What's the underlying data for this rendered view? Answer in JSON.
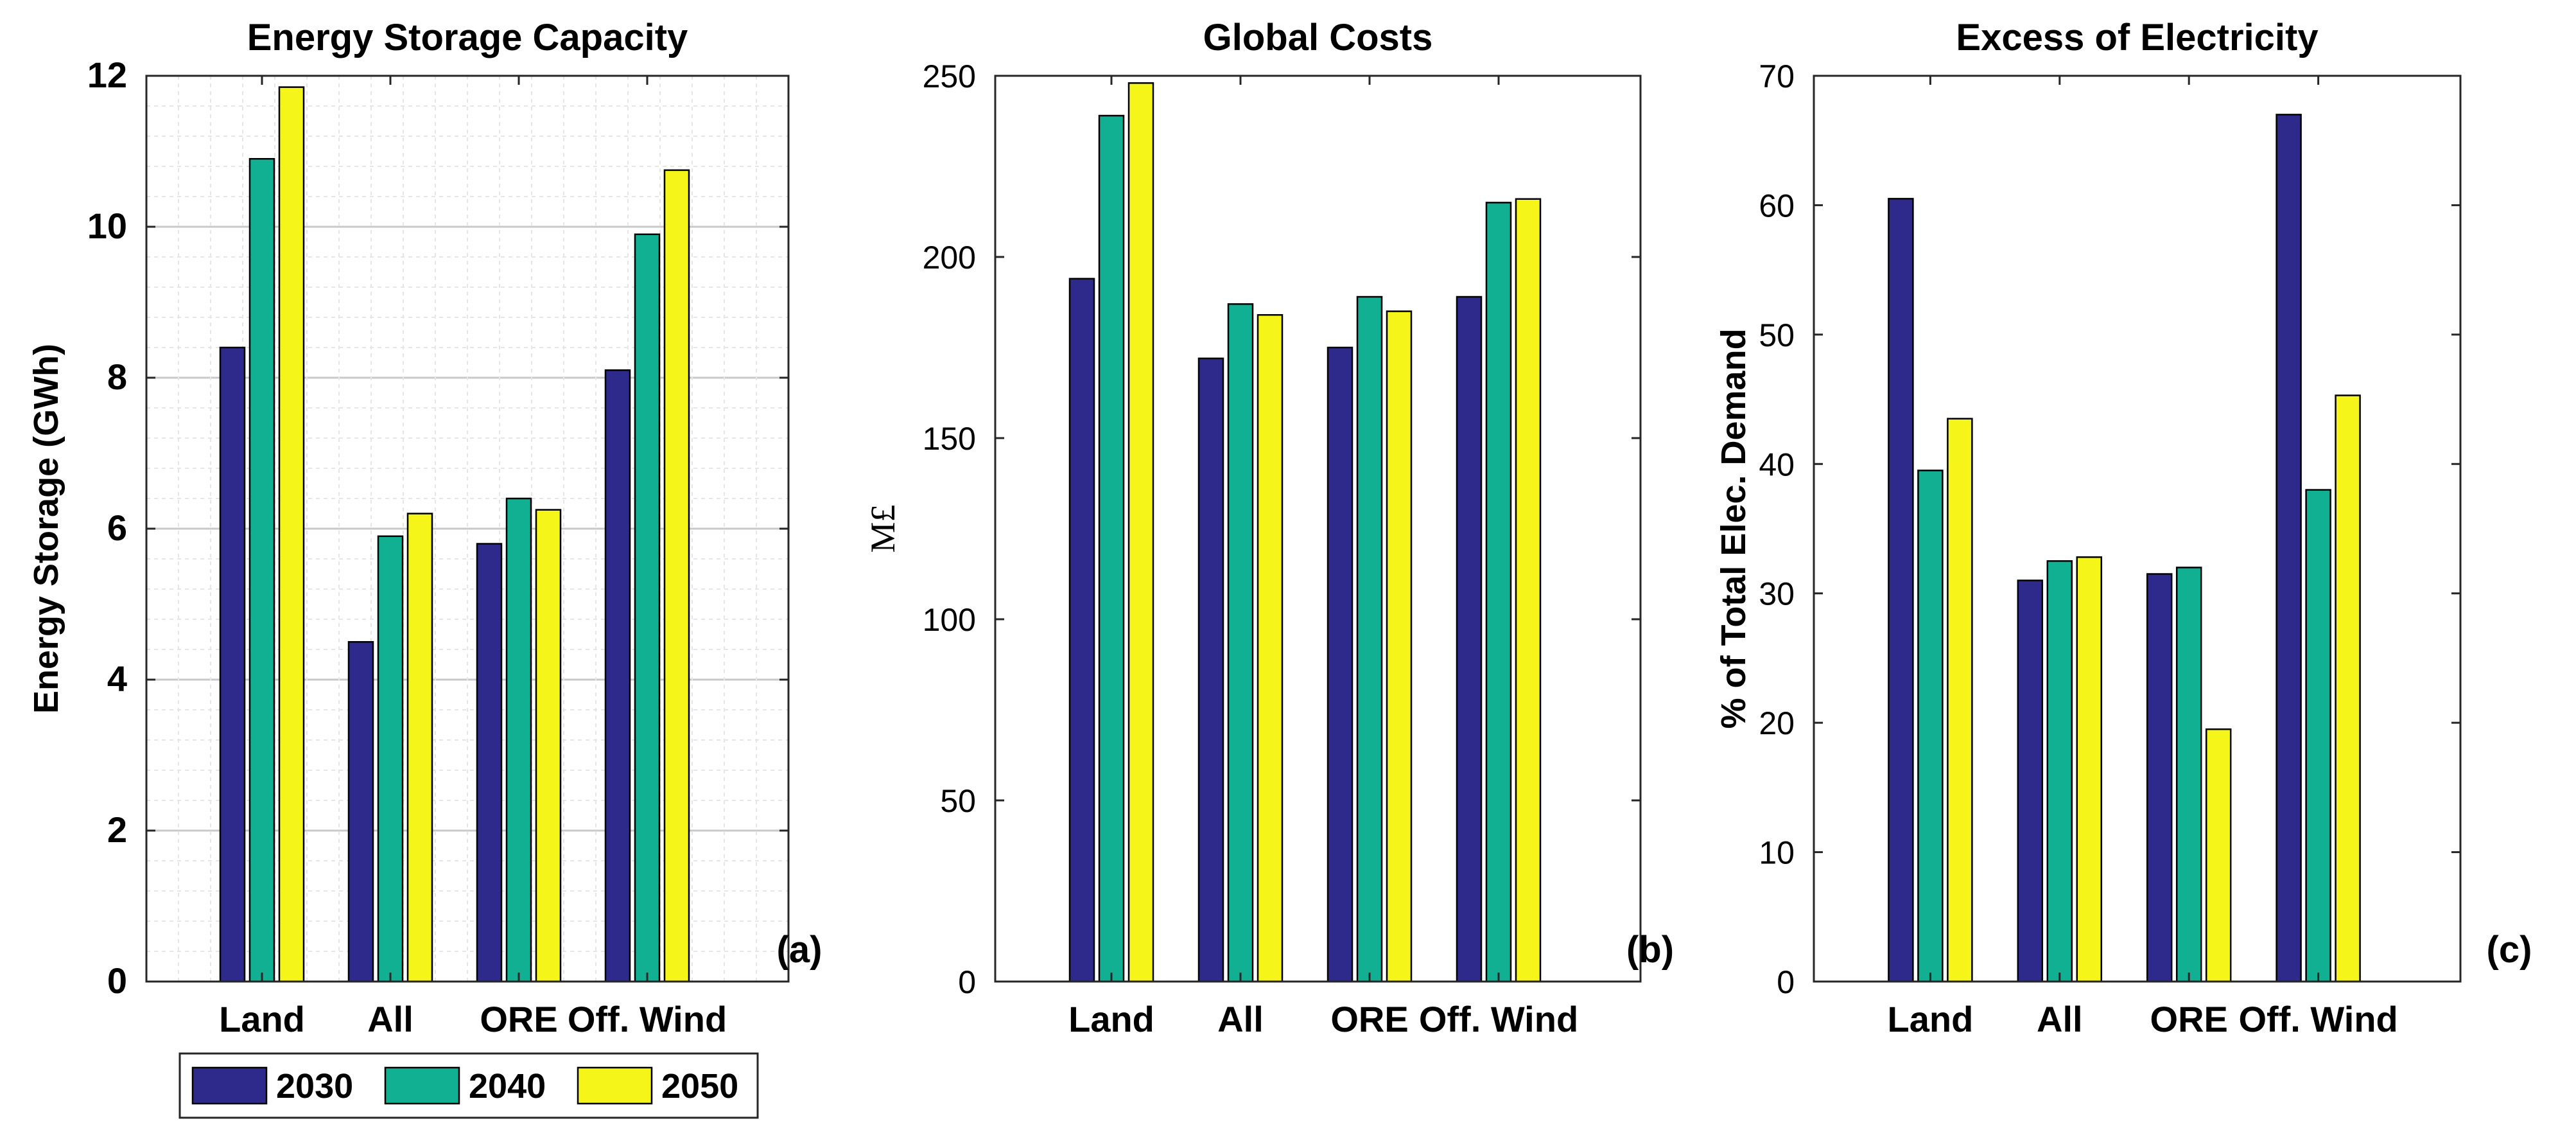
{
  "colors": {
    "2030": "#2e2a8c",
    "2040": "#12b093",
    "2050": "#f5f51a"
  },
  "legend": {
    "entries": [
      "2030",
      "2040",
      "2050"
    ]
  },
  "chart_data": [
    {
      "type": "bar",
      "panel": "(a)",
      "title": "Energy Storage Capacity",
      "xlabel": "",
      "ylabel": "Energy Storage (GWh)",
      "ylim": [
        0,
        12
      ],
      "yticks": [
        0,
        2,
        4,
        6,
        8,
        10,
        12
      ],
      "grid": true,
      "categories": [
        "Land",
        "All",
        "ORE",
        "Off. Wind"
      ],
      "series": [
        {
          "name": "2030",
          "values": [
            8.4,
            4.5,
            5.8,
            8.1
          ]
        },
        {
          "name": "2040",
          "values": [
            10.9,
            5.9,
            6.4,
            9.9
          ]
        },
        {
          "name": "2050",
          "values": [
            11.85,
            6.2,
            6.25,
            10.75
          ]
        }
      ]
    },
    {
      "type": "bar",
      "panel": "(b)",
      "title": "Global Costs",
      "xlabel": "",
      "ylabel": "M£",
      "ylim": [
        0,
        250
      ],
      "yticks": [
        0,
        50,
        100,
        150,
        200,
        250
      ],
      "grid": false,
      "categories": [
        "Land",
        "All",
        "ORE",
        "Off. Wind"
      ],
      "series": [
        {
          "name": "2030",
          "values": [
            194,
            172,
            175,
            189
          ]
        },
        {
          "name": "2040",
          "values": [
            239,
            187,
            189,
            215
          ]
        },
        {
          "name": "2050",
          "values": [
            248,
            184,
            185,
            216
          ]
        }
      ]
    },
    {
      "type": "bar",
      "panel": "(c)",
      "title": "Excess of Electricity",
      "xlabel": "",
      "ylabel": "% of Total Elec. Demand",
      "ylim": [
        0,
        70
      ],
      "yticks": [
        0,
        10,
        20,
        30,
        40,
        50,
        60,
        70
      ],
      "grid": false,
      "categories": [
        "Land",
        "All",
        "ORE",
        "Off. Wind"
      ],
      "series": [
        {
          "name": "2030",
          "values": [
            60.5,
            31,
            31.5,
            67
          ]
        },
        {
          "name": "2040",
          "values": [
            39.5,
            32.5,
            32,
            38
          ]
        },
        {
          "name": "2050",
          "values": [
            43.5,
            32.8,
            19.5,
            45.3
          ]
        }
      ]
    }
  ]
}
